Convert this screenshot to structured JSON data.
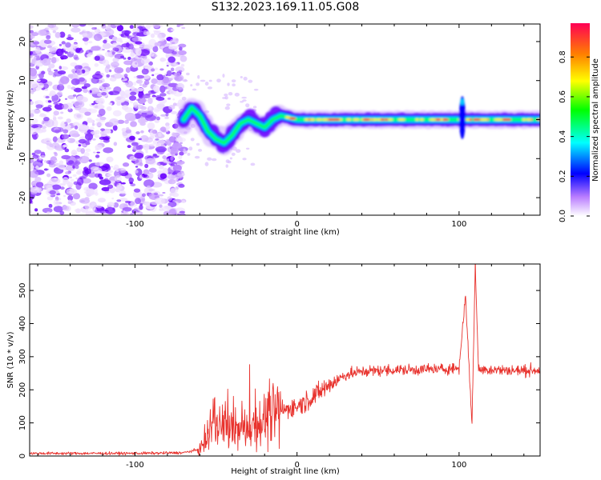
{
  "title": "S132.2023.169.11.05.G08",
  "colorbar": {
    "label": "Normalized spectral amplitude",
    "ticks": [
      "0.0",
      "0.2",
      "0.4",
      "0.6",
      "0.8"
    ]
  },
  "chart_data": [
    {
      "type": "heatmap",
      "xlabel": "Height of straight line (km)",
      "ylabel": "Frequency (Hz)",
      "xlim": [
        -165,
        150
      ],
      "ylim": [
        -24.5,
        24.5
      ],
      "x_ticks": [
        -100,
        0,
        100
      ],
      "y_ticks": [
        -20,
        -10,
        0,
        10,
        20
      ],
      "grid": false,
      "noise_region": {
        "x": [
          -165,
          -70
        ],
        "level": 0.15
      },
      "ridge": [
        {
          "x": -70,
          "y": 0
        },
        {
          "x": -65,
          "y": 3
        },
        {
          "x": -60,
          "y": 1
        },
        {
          "x": -55,
          "y": -3
        },
        {
          "x": -50,
          "y": -5
        },
        {
          "x": -45,
          "y": -6
        },
        {
          "x": -40,
          "y": -4
        },
        {
          "x": -35,
          "y": -1
        },
        {
          "x": -30,
          "y": 0
        },
        {
          "x": -25,
          "y": -1
        },
        {
          "x": -20,
          "y": -2
        },
        {
          "x": -15,
          "y": 0
        },
        {
          "x": -10,
          "y": 1
        },
        {
          "x": 0,
          "y": 0
        },
        {
          "x": 50,
          "y": 0
        },
        {
          "x": 100,
          "y": 0
        },
        {
          "x": 150,
          "y": 0
        }
      ],
      "spike": {
        "x": 102,
        "yrange": [
          -5,
          6
        ]
      }
    },
    {
      "type": "line",
      "xlabel": "Height of straight line (km)",
      "ylabel": "SNR (10 * v/v)",
      "xlim": [
        -165,
        150
      ],
      "ylim": [
        0,
        580
      ],
      "x_ticks": [
        -100,
        0,
        100
      ],
      "y_ticks": [
        0,
        100,
        200,
        300,
        400,
        500
      ],
      "grid": false,
      "color": "#e8322d",
      "series": [
        {
          "x": [
            -165,
            -140,
            -120,
            -100,
            -80,
            -70,
            -60,
            -55,
            -50,
            -45,
            -40,
            -35,
            -30,
            -25,
            -20,
            -15,
            -10,
            -5,
            0,
            10,
            20,
            30,
            40,
            50,
            60,
            70,
            80,
            90,
            95,
            100,
            104,
            106,
            108,
            110,
            112,
            120,
            130,
            140,
            150
          ],
          "values": [
            8,
            8,
            8,
            8,
            9,
            10,
            20,
            60,
            100,
            90,
            80,
            75,
            90,
            100,
            110,
            120,
            135,
            145,
            150,
            180,
            215,
            245,
            255,
            258,
            260,
            260,
            262,
            262,
            265,
            265,
            490,
            280,
            100,
            580,
            260,
            262,
            258,
            258,
            260
          ]
        }
      ]
    }
  ]
}
